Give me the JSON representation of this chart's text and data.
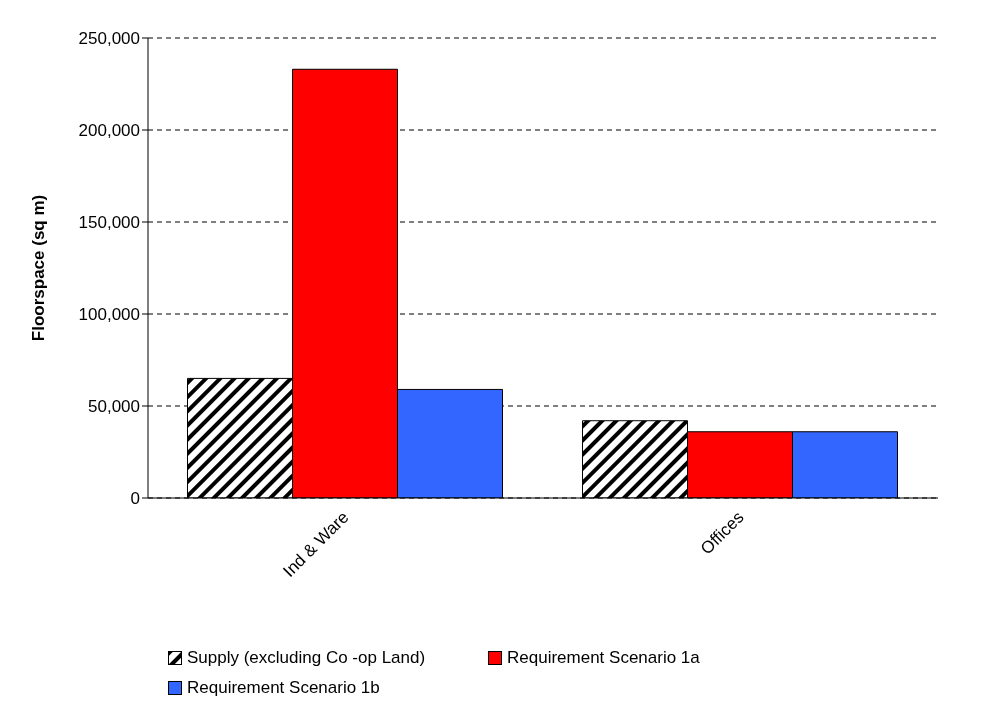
{
  "chart_data": {
    "type": "bar",
    "ylabel": "Floorspace (sq m)",
    "categories": [
      "Ind & Ware",
      "Offices"
    ],
    "series": [
      {
        "name": "Supply (excluding Co -op Land)",
        "color": "#000000",
        "values": [
          65000,
          42000
        ]
      },
      {
        "name": "Requirement Scenario 1a",
        "color": "#ff0000",
        "values": [
          233000,
          36000
        ]
      },
      {
        "name": "Requirement Scenario 1b",
        "color": "#3366ff",
        "values": [
          59000,
          36000
        ]
      }
    ],
    "ylim": [
      0,
      250000
    ],
    "yticks": [
      {
        "value": 0,
        "label": "0"
      },
      {
        "value": 50000,
        "label": "50,000"
      },
      {
        "value": 100000,
        "label": "100,000"
      },
      {
        "value": 150000,
        "label": "150,000"
      },
      {
        "value": 200000,
        "label": "200,000"
      },
      {
        "value": 250000,
        "label": "250,000"
      }
    ],
    "grid": "y",
    "legend": "bottom"
  }
}
